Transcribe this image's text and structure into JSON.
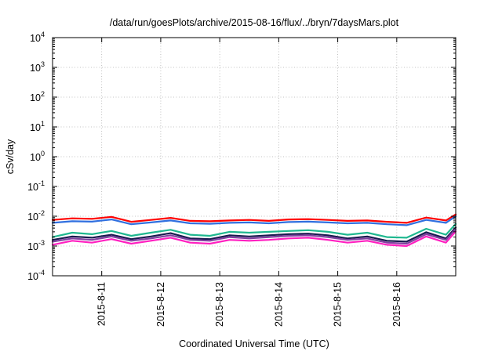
{
  "chart_data": {
    "type": "line",
    "title": "/data/run/goesPlots/archive/2015-08-16/flux/../bryn/7daysMars.plot",
    "xlabel": "Coordinated Universal Time (UTC)",
    "ylabel": "cSv/day",
    "yscale": "log",
    "ylim": [
      0.0001,
      10000
    ],
    "y_ticks": [
      {
        "value": 0.0001,
        "base": "10",
        "exp": "-4"
      },
      {
        "value": 0.001,
        "base": "10",
        "exp": "-3"
      },
      {
        "value": 0.01,
        "base": "10",
        "exp": "-2"
      },
      {
        "value": 0.1,
        "base": "10",
        "exp": "-1"
      },
      {
        "value": 1,
        "base": "10",
        "exp": "0"
      },
      {
        "value": 10,
        "base": "10",
        "exp": "1"
      },
      {
        "value": 100,
        "base": "10",
        "exp": "2"
      },
      {
        "value": 1000,
        "base": "10",
        "exp": "3"
      },
      {
        "value": 10000,
        "base": "10",
        "exp": "4"
      }
    ],
    "xlim": [
      "2015-08-10 04:00",
      "2015-08-16 23:59"
    ],
    "x_ticks": [
      "2015-8-11",
      "2015-8-12",
      "2015-8-13",
      "2015-8-14",
      "2015-8-15",
      "2015-8-16"
    ],
    "grid": true,
    "x": [
      "2015-08-10 04:00",
      "2015-08-10 12:00",
      "2015-08-10 20:00",
      "2015-08-11 04:00",
      "2015-08-11 12:00",
      "2015-08-11 20:00",
      "2015-08-12 04:00",
      "2015-08-12 12:00",
      "2015-08-12 20:00",
      "2015-08-13 04:00",
      "2015-08-13 12:00",
      "2015-08-13 20:00",
      "2015-08-14 04:00",
      "2015-08-14 12:00",
      "2015-08-14 20:00",
      "2015-08-15 04:00",
      "2015-08-15 12:00",
      "2015-08-15 20:00",
      "2015-08-16 04:00",
      "2015-08-16 12:00",
      "2015-08-16 20:00",
      "2015-08-16 23:59"
    ],
    "series": [
      {
        "color": "#ff0000",
        "values": [
          0.0075,
          0.0085,
          0.0082,
          0.0095,
          0.0065,
          0.0075,
          0.0088,
          0.007,
          0.0068,
          0.0072,
          0.0075,
          0.007,
          0.0078,
          0.008,
          0.0075,
          0.007,
          0.0072,
          0.0065,
          0.006,
          0.009,
          0.0072,
          0.0115
        ]
      },
      {
        "color": "#3070e0",
        "values": [
          0.006,
          0.0068,
          0.0066,
          0.0078,
          0.0054,
          0.0062,
          0.0072,
          0.0058,
          0.0056,
          0.006,
          0.0062,
          0.0058,
          0.0064,
          0.0066,
          0.0062,
          0.0058,
          0.006,
          0.0054,
          0.005,
          0.0075,
          0.006,
          0.01
        ]
      },
      {
        "color": "#20b890",
        "values": [
          0.002,
          0.0028,
          0.0025,
          0.0032,
          0.0022,
          0.0028,
          0.0035,
          0.0024,
          0.0022,
          0.003,
          0.0028,
          0.003,
          0.0032,
          0.0034,
          0.003,
          0.0024,
          0.0028,
          0.002,
          0.0019,
          0.0038,
          0.0024,
          0.0055
        ]
      },
      {
        "color": "#1a1a50",
        "values": [
          0.0016,
          0.0021,
          0.0019,
          0.0024,
          0.0017,
          0.0021,
          0.0027,
          0.0018,
          0.0017,
          0.0023,
          0.0021,
          0.0023,
          0.0025,
          0.0026,
          0.0023,
          0.0018,
          0.0021,
          0.0015,
          0.0014,
          0.0029,
          0.0018,
          0.0042
        ]
      },
      {
        "color": "#8040a0",
        "values": [
          0.0014,
          0.0018,
          0.0016,
          0.0021,
          0.0015,
          0.0018,
          0.0023,
          0.0016,
          0.0015,
          0.002,
          0.0018,
          0.002,
          0.0022,
          0.0023,
          0.002,
          0.0016,
          0.0018,
          0.0013,
          0.0012,
          0.0025,
          0.0016,
          0.0037
        ]
      },
      {
        "color": "#ff20c0",
        "values": [
          0.0011,
          0.0015,
          0.0013,
          0.0017,
          0.0012,
          0.0015,
          0.0019,
          0.0013,
          0.0012,
          0.0016,
          0.0015,
          0.0016,
          0.0018,
          0.0019,
          0.0016,
          0.0013,
          0.0015,
          0.0011,
          0.001,
          0.0021,
          0.0013,
          0.0031
        ]
      }
    ]
  }
}
